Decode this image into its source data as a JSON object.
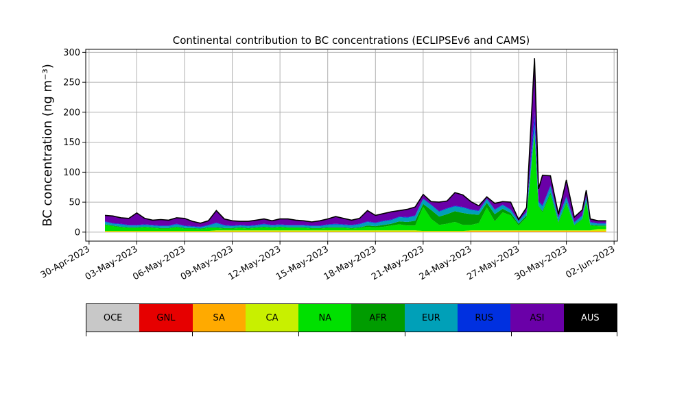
{
  "chart_data": {
    "type": "area",
    "stacked": true,
    "title": "Continental contribution to BC concentrations (ECLIPSEv6 and CAMS)",
    "ylabel": "BC concentration (ng m⁻³)",
    "xlabel": "",
    "ylim": [
      -15,
      305
    ],
    "yticks": [
      0,
      50,
      100,
      150,
      200,
      250,
      300
    ],
    "xlim": [
      "2023-04-29T19:00",
      "2023-06-02T05:00"
    ],
    "xticks": [
      "2023-04-30",
      "2023-05-03",
      "2023-05-06",
      "2023-05-09",
      "2023-05-12",
      "2023-05-15",
      "2023-05-18",
      "2023-05-21",
      "2023-05-24",
      "2023-05-27",
      "2023-05-30",
      "2023-06-02"
    ],
    "xtick_labels": [
      "30-Apr-2023",
      "03-May-2023",
      "06-May-2023",
      "09-May-2023",
      "12-May-2023",
      "15-May-2023",
      "18-May-2023",
      "21-May-2023",
      "24-May-2023",
      "27-May-2023",
      "30-May-2023",
      "02-Jun-2023"
    ],
    "grid": true,
    "x": [
      "2023-05-01T00:00",
      "2023-05-01T12:00",
      "2023-05-02T00:00",
      "2023-05-02T12:00",
      "2023-05-03T00:00",
      "2023-05-03T12:00",
      "2023-05-04T00:00",
      "2023-05-04T12:00",
      "2023-05-05T00:00",
      "2023-05-05T12:00",
      "2023-05-06T00:00",
      "2023-05-06T12:00",
      "2023-05-07T00:00",
      "2023-05-07T12:00",
      "2023-05-08T00:00",
      "2023-05-08T12:00",
      "2023-05-09T00:00",
      "2023-05-09T12:00",
      "2023-05-10T00:00",
      "2023-05-10T12:00",
      "2023-05-11T00:00",
      "2023-05-11T12:00",
      "2023-05-12T00:00",
      "2023-05-12T12:00",
      "2023-05-13T00:00",
      "2023-05-13T12:00",
      "2023-05-14T00:00",
      "2023-05-14T12:00",
      "2023-05-15T00:00",
      "2023-05-15T12:00",
      "2023-05-16T00:00",
      "2023-05-16T12:00",
      "2023-05-17T00:00",
      "2023-05-17T12:00",
      "2023-05-18T00:00",
      "2023-05-18T12:00",
      "2023-05-19T00:00",
      "2023-05-19T12:00",
      "2023-05-20T00:00",
      "2023-05-20T12:00",
      "2023-05-21T00:00",
      "2023-05-21T12:00",
      "2023-05-22T00:00",
      "2023-05-22T12:00",
      "2023-05-23T00:00",
      "2023-05-23T12:00",
      "2023-05-24T00:00",
      "2023-05-24T12:00",
      "2023-05-25T00:00",
      "2023-05-25T12:00",
      "2023-05-26T00:00",
      "2023-05-26T12:00",
      "2023-05-27T00:00",
      "2023-05-27T12:00",
      "2023-05-28T00:00",
      "2023-05-28T06:00",
      "2023-05-28T12:00",
      "2023-05-29T00:00",
      "2023-05-29T12:00",
      "2023-05-30T00:00",
      "2023-05-30T12:00",
      "2023-05-31T00:00",
      "2023-05-31T06:00",
      "2023-05-31T12:00",
      "2023-06-01T00:00",
      "2023-06-01T12:00"
    ],
    "series": [
      {
        "name": "OCE",
        "color": "#c8c8c8",
        "values": [
          0,
          0,
          0,
          0,
          0,
          0,
          0,
          0,
          0,
          0,
          0,
          0,
          0,
          0,
          0,
          0,
          0,
          0,
          0,
          0,
          0,
          0,
          0,
          0,
          0,
          0,
          0,
          0,
          0,
          0,
          0,
          0,
          0,
          0,
          0,
          0,
          0,
          0,
          0,
          0,
          0,
          0,
          0,
          0,
          0,
          0,
          0,
          0,
          0,
          0,
          0,
          0,
          0,
          0,
          0,
          0,
          0,
          0,
          0,
          0,
          0,
          0,
          0,
          0,
          0,
          0
        ]
      },
      {
        "name": "GNL",
        "color": "#e60000",
        "values": [
          0,
          0,
          0,
          0,
          0,
          0,
          0,
          0,
          0,
          0,
          0,
          0,
          0,
          0,
          0,
          0,
          0,
          0,
          0,
          0,
          0,
          0,
          0,
          0,
          0,
          0,
          0,
          0,
          0,
          0,
          0,
          0,
          0,
          0,
          0,
          0,
          0,
          0,
          0,
          0,
          0,
          0,
          0,
          0,
          0,
          0,
          0,
          0,
          0,
          0,
          0,
          0,
          0,
          0,
          0,
          0,
          0,
          0,
          0,
          0,
          0,
          0,
          0,
          0,
          0,
          0
        ]
      },
      {
        "name": "SA",
        "color": "#ffaa00",
        "values": [
          1,
          1,
          1,
          1,
          1,
          1,
          1,
          1,
          1,
          1,
          1,
          1,
          1,
          1,
          1,
          1,
          1,
          1,
          1,
          1,
          1,
          1,
          1,
          1,
          1,
          1,
          1,
          1,
          1,
          1,
          1,
          1,
          1,
          1,
          1,
          1,
          1,
          1,
          1,
          1,
          1,
          1,
          1,
          1,
          1,
          1,
          2,
          2,
          2,
          2,
          2,
          2,
          2,
          2,
          2,
          2,
          2,
          2,
          2,
          2,
          2,
          2,
          2,
          2,
          2,
          2
        ]
      },
      {
        "name": "CA",
        "color": "#c8f000",
        "values": [
          1,
          1,
          1,
          1,
          1,
          1,
          1,
          1,
          1,
          1,
          1,
          1,
          1,
          1,
          2,
          2,
          2,
          2,
          2,
          2,
          2,
          2,
          2,
          2,
          2,
          2,
          2,
          2,
          2,
          2,
          2,
          2,
          2,
          2,
          2,
          2,
          2,
          2,
          2,
          2,
          1,
          1,
          1,
          1,
          1,
          1,
          1,
          1,
          1,
          1,
          1,
          1,
          1,
          1,
          1,
          1,
          1,
          1,
          1,
          1,
          1,
          1,
          1,
          1,
          3,
          3
        ]
      },
      {
        "name": "NA",
        "color": "#00e000",
        "values": [
          10,
          8,
          6,
          5,
          5,
          6,
          5,
          4,
          4,
          6,
          4,
          4,
          3,
          5,
          4,
          3,
          3,
          4,
          3,
          4,
          5,
          4,
          5,
          4,
          4,
          4,
          3,
          3,
          4,
          4,
          4,
          3,
          4,
          6,
          5,
          6,
          8,
          10,
          8,
          8,
          40,
          20,
          10,
          12,
          15,
          10,
          9,
          12,
          38,
          15,
          30,
          25,
          8,
          22,
          160,
          40,
          30,
          60,
          12,
          45,
          8,
          18,
          48,
          8,
          5,
          5
        ]
      },
      {
        "name": "AFR",
        "color": "#009c00",
        "values": [
          1,
          1,
          1,
          1,
          1,
          1,
          1,
          1,
          1,
          1,
          1,
          1,
          1,
          1,
          1,
          1,
          1,
          1,
          1,
          1,
          1,
          1,
          1,
          1,
          1,
          1,
          1,
          1,
          1,
          1,
          1,
          1,
          1,
          2,
          2,
          3,
          3,
          5,
          6,
          8,
          5,
          15,
          14,
          16,
          18,
          20,
          18,
          14,
          8,
          12,
          6,
          4,
          3,
          3,
          2,
          1,
          2,
          3,
          2,
          2,
          1,
          1,
          1,
          1,
          1,
          1
        ]
      },
      {
        "name": "EUR",
        "color": "#00a0b8",
        "values": [
          4,
          3,
          4,
          3,
          3,
          3,
          3,
          3,
          3,
          4,
          3,
          2,
          2,
          3,
          7,
          4,
          3,
          3,
          3,
          3,
          4,
          3,
          3,
          3,
          3,
          3,
          3,
          3,
          4,
          5,
          4,
          4,
          5,
          6,
          5,
          6,
          6,
          7,
          7,
          8,
          8,
          8,
          8,
          9,
          8,
          9,
          7,
          6,
          6,
          7,
          6,
          5,
          4,
          5,
          15,
          6,
          8,
          10,
          6,
          8,
          4,
          5,
          6,
          4,
          3,
          3
        ]
      },
      {
        "name": "RUS",
        "color": "#0030e0",
        "values": [
          1,
          1,
          1,
          1,
          1,
          1,
          1,
          1,
          1,
          1,
          1,
          1,
          1,
          1,
          1,
          1,
          1,
          1,
          1,
          1,
          1,
          1,
          1,
          1,
          1,
          1,
          1,
          1,
          1,
          1,
          1,
          1,
          1,
          1,
          1,
          1,
          1,
          1,
          1,
          1,
          1,
          1,
          1,
          1,
          1,
          1,
          1,
          1,
          1,
          1,
          1,
          1,
          1,
          1,
          20,
          2,
          2,
          2,
          1,
          2,
          1,
          1,
          2,
          1,
          1,
          1
        ]
      },
      {
        "name": "ASI",
        "color": "#6a00a8",
        "values": [
          10,
          12,
          10,
          11,
          20,
          10,
          8,
          10,
          9,
          10,
          12,
          8,
          6,
          7,
          20,
          10,
          8,
          6,
          7,
          8,
          8,
          7,
          9,
          10,
          8,
          7,
          6,
          8,
          9,
          12,
          10,
          8,
          9,
          18,
          12,
          12,
          13,
          10,
          13,
          14,
          7,
          5,
          15,
          12,
          22,
          20,
          13,
          8,
          3,
          10,
          5,
          12,
          2,
          7,
          90,
          20,
          50,
          16,
          6,
          27,
          8,
          9,
          10,
          5,
          4,
          4
        ]
      },
      {
        "name": "AUS",
        "color": "#000000",
        "values": [
          0,
          0,
          0,
          0,
          0,
          0,
          0,
          0,
          0,
          0,
          0,
          0,
          0,
          0,
          0,
          0,
          0,
          0,
          0,
          0,
          0,
          0,
          0,
          0,
          0,
          0,
          0,
          0,
          0,
          0,
          0,
          0,
          0,
          0,
          0,
          0,
          0,
          0,
          0,
          0,
          0,
          0,
          0,
          0,
          0,
          0,
          0,
          0,
          0,
          0,
          0,
          0,
          0,
          0,
          0,
          0,
          0,
          0,
          0,
          0,
          0,
          0,
          0,
          0,
          0,
          0
        ]
      }
    ],
    "legend": {
      "position": "below-plot",
      "labels": [
        "OCE",
        "GNL",
        "SA",
        "CA",
        "NA",
        "AFR",
        "EUR",
        "RUS",
        "ASI",
        "AUS"
      ],
      "colors": [
        "#c8c8c8",
        "#e60000",
        "#ffaa00",
        "#c8f000",
        "#00e000",
        "#009c00",
        "#00a0b8",
        "#0030e0",
        "#6a00a8",
        "#000000"
      ]
    }
  }
}
